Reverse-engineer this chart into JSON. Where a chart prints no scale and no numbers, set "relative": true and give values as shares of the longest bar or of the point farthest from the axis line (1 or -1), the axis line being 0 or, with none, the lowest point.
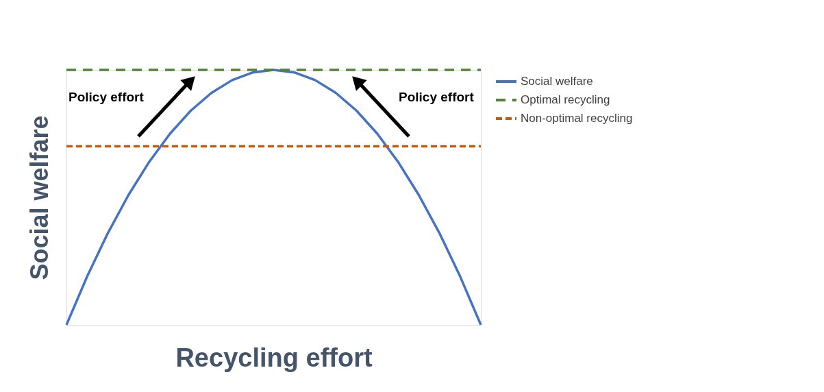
{
  "chart_data": {
    "type": "line",
    "relative": true,
    "xlabel": "Recycling effort",
    "ylabel": "Social welfare",
    "legend": "right",
    "grid": false,
    "marker": "none",
    "categories": [
      null,
      null,
      null,
      null,
      null,
      null,
      null,
      null,
      null,
      null,
      null,
      null,
      null,
      null,
      null,
      null,
      null,
      null,
      null,
      null,
      null
    ],
    "series": [
      {
        "name": "Social welfare",
        "color": "#4472c4",
        "line_style": "solid",
        "values": [
          0,
          0.19,
          0.36,
          0.51,
          0.64,
          0.75,
          0.84,
          0.91,
          0.96,
          0.99,
          1,
          0.99,
          0.96,
          0.91,
          0.84,
          0.75,
          0.64,
          0.51,
          0.36,
          0.19,
          0
        ]
      },
      {
        "name": "Optimal recycling",
        "color": "#548235",
        "line_style": "dashed",
        "values": [
          1,
          1,
          1,
          1,
          1,
          1,
          1,
          1,
          1,
          1,
          1,
          1,
          1,
          1,
          1,
          1,
          1,
          1,
          1,
          1,
          1
        ]
      },
      {
        "name": "Non-optimal recycling",
        "color": "#c55a11",
        "line_style": "dotted",
        "values": [
          0.7,
          0.7,
          0.7,
          0.7,
          0.7,
          0.7,
          0.7,
          0.7,
          0.7,
          0.7,
          0.7,
          0.7,
          0.7,
          0.7,
          0.7,
          0.7,
          0.7,
          0.7,
          0.7,
          0.7,
          0.7
        ]
      }
    ],
    "annotations": [
      "Policy effort",
      "Policy effort"
    ]
  }
}
